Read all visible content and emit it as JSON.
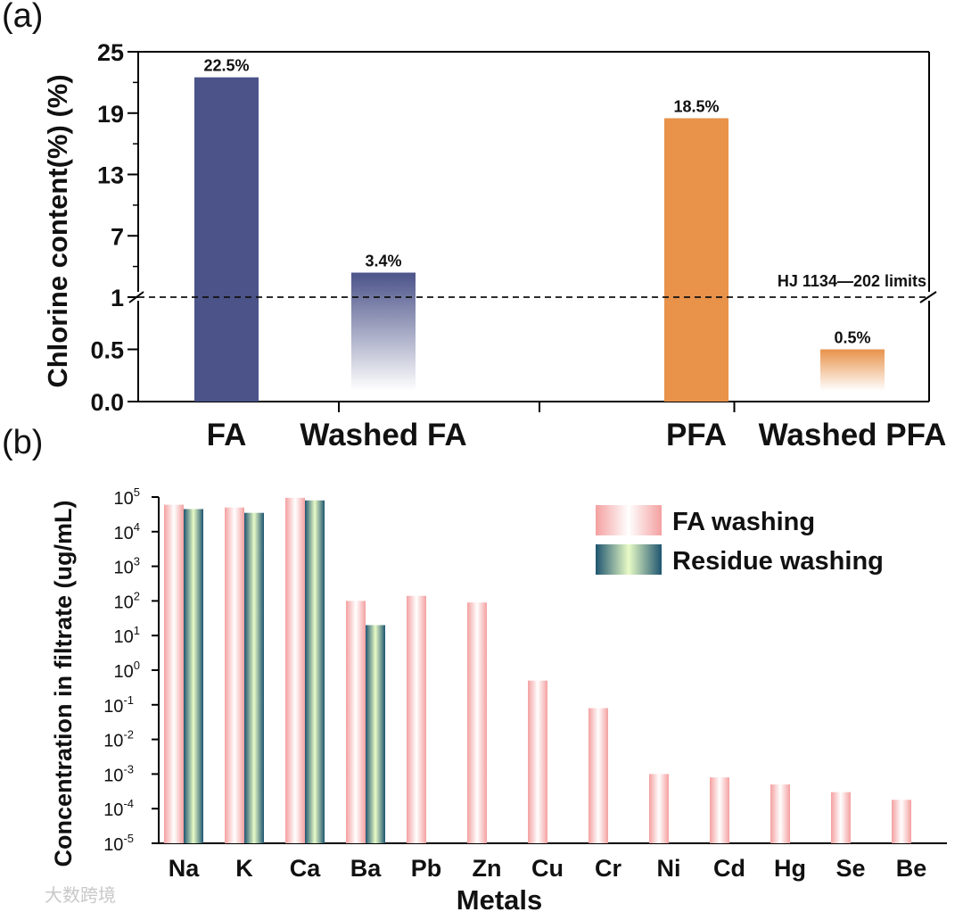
{
  "panel_labels": {
    "a": "(a)",
    "b": "(b)"
  },
  "watermark": "大数跨境",
  "chart_data": [
    {
      "type": "bar",
      "panel": "(a)",
      "title": "",
      "ylabel": "Chlorine content(%) (%)",
      "xlabel": "",
      "ylim": [
        0,
        25
      ],
      "axis_break": 1,
      "yticks_lower": [
        "0.0",
        "0.5",
        "1"
      ],
      "yticks_upper": [
        "1",
        "7",
        "13",
        "19",
        "25"
      ],
      "categories": [
        "FA",
        "Washed FA",
        "PFA",
        "Washed PFA"
      ],
      "values": [
        22.5,
        3.4,
        18.5,
        0.5
      ],
      "value_labels": [
        "22.5%",
        "3.4%",
        "18.5%",
        "0.5%"
      ],
      "colors": [
        "#4b5389",
        "#4b5389",
        "#e8924a",
        "#e8924a"
      ],
      "gradient_fade": [
        false,
        true,
        false,
        true
      ],
      "reference_line": {
        "value": 1,
        "label": "HJ 1134—202 limits",
        "style": "dashed"
      }
    },
    {
      "type": "bar",
      "panel": "(b)",
      "scale": "log",
      "xlabel": "Metals",
      "ylabel": "Concentration in filtrate (ug/mL)",
      "ylim_exponent": [
        -5,
        5
      ],
      "ytick_base": "10",
      "ytick_exponents": [
        "-5",
        "-4",
        "-3",
        "-2",
        "-1",
        "0",
        "1",
        "2",
        "3",
        "4",
        "5"
      ],
      "categories": [
        "Na",
        "K",
        "Ca",
        "Ba",
        "Pb",
        "Zn",
        "Cu",
        "Cr",
        "Ni",
        "Cd",
        "Hg",
        "Se",
        "Be"
      ],
      "series": [
        {
          "name": "FA washing",
          "color": "#f4a4a4",
          "values": [
            60000,
            50000,
            95000,
            100,
            140,
            90,
            0.5,
            0.08,
            0.001,
            0.0008,
            0.0005,
            0.0003,
            0.00018
          ]
        },
        {
          "name": "Residue washing",
          "color": "#1f5f6e",
          "values": [
            45000,
            35000,
            80000,
            20,
            null,
            null,
            null,
            null,
            null,
            null,
            null,
            null,
            null
          ]
        }
      ],
      "legend_position": "top-right"
    }
  ]
}
